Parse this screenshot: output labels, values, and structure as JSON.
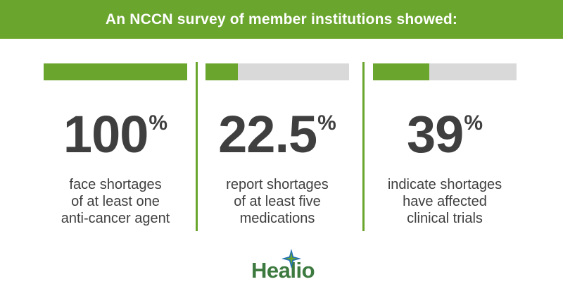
{
  "header": {
    "title": "An NCCN survey of member institutions showed:"
  },
  "stats": [
    {
      "number": "100",
      "percent_sign": "%",
      "fill_fraction": 1.0,
      "lines": [
        "face shortages",
        "of at least one",
        "anti-cancer agent"
      ]
    },
    {
      "number": "22.5",
      "percent_sign": "%",
      "fill_fraction": 0.225,
      "lines": [
        "report shortages",
        "of at least five",
        "medications"
      ]
    },
    {
      "number": "39",
      "percent_sign": "%",
      "fill_fraction": 0.39,
      "lines": [
        "indicate shortages",
        "have affected",
        "clinical trials"
      ]
    }
  ],
  "logo": {
    "text": "Healio",
    "icon": "star-icon"
  },
  "colors": {
    "accent": "#6aa52d",
    "track": "#d9d9d9",
    "text": "#3f3f3f",
    "logo_green": "#3d7a3f",
    "logo_blue": "#1f6fb4"
  }
}
